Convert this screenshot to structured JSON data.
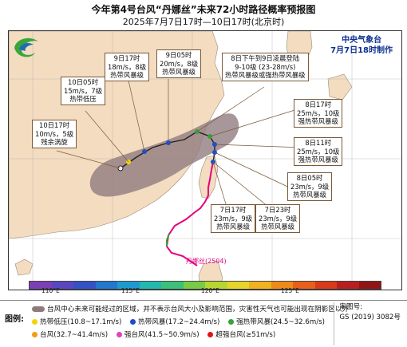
{
  "title": "今年第4号台风“丹娜丝”未来72小时路径概率预报图",
  "subtitle": "2025年7月7日17时—10日17时(北京时)",
  "agency": {
    "name": "中央气象台",
    "made": "7月7日18时制作"
  },
  "typhoon_label": "丹娜丝(2504)",
  "colors": {
    "sea": "#ffffff",
    "land": "#f3dcc0",
    "cone": "#8e7a7e",
    "past_track": "#e4007f",
    "forecast_track": "#222222"
  },
  "callouts": [
    {
      "id": "c1",
      "lines": [
        "10日17时",
        "10m/s，5级",
        "残余涡旋"
      ]
    },
    {
      "id": "c2",
      "lines": [
        "10日05时",
        "15m/s，7级",
        "热带低压"
      ]
    },
    {
      "id": "c3",
      "lines": [
        "9日17时",
        "18m/s，8级",
        "热带风暴级"
      ]
    },
    {
      "id": "c4",
      "lines": [
        "9日05时",
        "20m/s，8级",
        "热带风暴级"
      ]
    },
    {
      "id": "c5",
      "lines": [
        "8日下午到9日凌晨登陆",
        "9-10级 (23-28m/s)",
        "热带风暴级或强热带风暴级"
      ]
    },
    {
      "id": "c6",
      "lines": [
        "8日17时",
        "25m/s，10级",
        "强热带风暴级"
      ]
    },
    {
      "id": "c7",
      "lines": [
        "8日11时",
        "25m/s，10级",
        "强热带风暴级"
      ]
    },
    {
      "id": "c8",
      "lines": [
        "8日05时",
        "23m/s，9级",
        "热带风暴级"
      ]
    },
    {
      "id": "c9",
      "lines": [
        "7日23时",
        "23m/s，9级",
        "热带风暴级"
      ]
    },
    {
      "id": "c10",
      "lines": [
        "7日17时",
        "23m/s，9级",
        "热带风暴级"
      ]
    }
  ],
  "longitudes": [
    "110°E",
    "115°E",
    "120°E",
    "125°E"
  ],
  "legend": {
    "title": "图例:",
    "cone_text": "台风中心未来可能经过的区域，并不表示台风大小及影响范围，灾害性天气也可能出现在阴影区以外",
    "items": [
      {
        "label": "热带低压(10.8~17.1m/s)",
        "color": "#f5d30a"
      },
      {
        "label": "热带风暴(17.2~24.4m/s)",
        "color": "#1f4cc8"
      },
      {
        "label": "强热带风暴(24.5~32.6m/s)",
        "color": "#37a23a"
      },
      {
        "label": "台风(32.7~41.4m/s)",
        "color": "#f39c12"
      },
      {
        "label": "强台风(41.5~50.9m/s)",
        "color": "#e23fc4"
      },
      {
        "label": "超强台风(≥51m/s)",
        "color": "#e01414"
      }
    ],
    "review_label": "审图号:",
    "review_number": "GS (2019) 3082号"
  },
  "forecast_track_points": [
    {
      "time": "7日17时",
      "category": "热带风暴"
    },
    {
      "time": "7日23时",
      "category": "热带风暴"
    },
    {
      "time": "8日05时",
      "category": "热带风暴"
    },
    {
      "time": "8日11时",
      "category": "强热带风暴"
    },
    {
      "time": "8日17时",
      "category": "强热带风暴"
    },
    {
      "time": "9日05时",
      "category": "热带风暴"
    },
    {
      "time": "9日17时",
      "category": "热带风暴"
    },
    {
      "time": "10日05时",
      "category": "热带低压"
    },
    {
      "time": "10日17时",
      "category": "残余涡旋"
    }
  ]
}
